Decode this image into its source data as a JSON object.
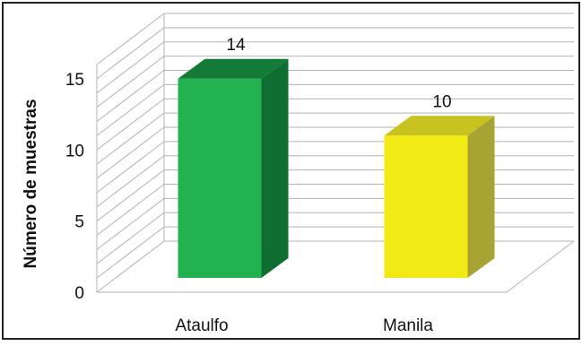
{
  "chart_data": {
    "type": "bar",
    "style": "3d-column",
    "categories": [
      "Ataulfo",
      "Manila"
    ],
    "values": [
      14,
      10
    ],
    "data_labels": [
      "14",
      "10"
    ],
    "ylabel": "Número de muestras",
    "xlabel": "",
    "ylim": [
      0,
      16
    ],
    "yticks": [
      0,
      5,
      10,
      15
    ],
    "ytick_labels": [
      "0",
      "5",
      "10",
      "15"
    ],
    "minor_gridline_step": 1,
    "grid": true,
    "legend": "none",
    "colors": {
      "Ataulfo": {
        "front": "#21b14f",
        "side": "#0f6f33",
        "top": "#137a38"
      },
      "Manila": {
        "front": "#f1ea14",
        "side": "#a7a433",
        "top": "#c8c31e"
      },
      "grid": "#b3b3b3",
      "border": "#222222"
    }
  }
}
